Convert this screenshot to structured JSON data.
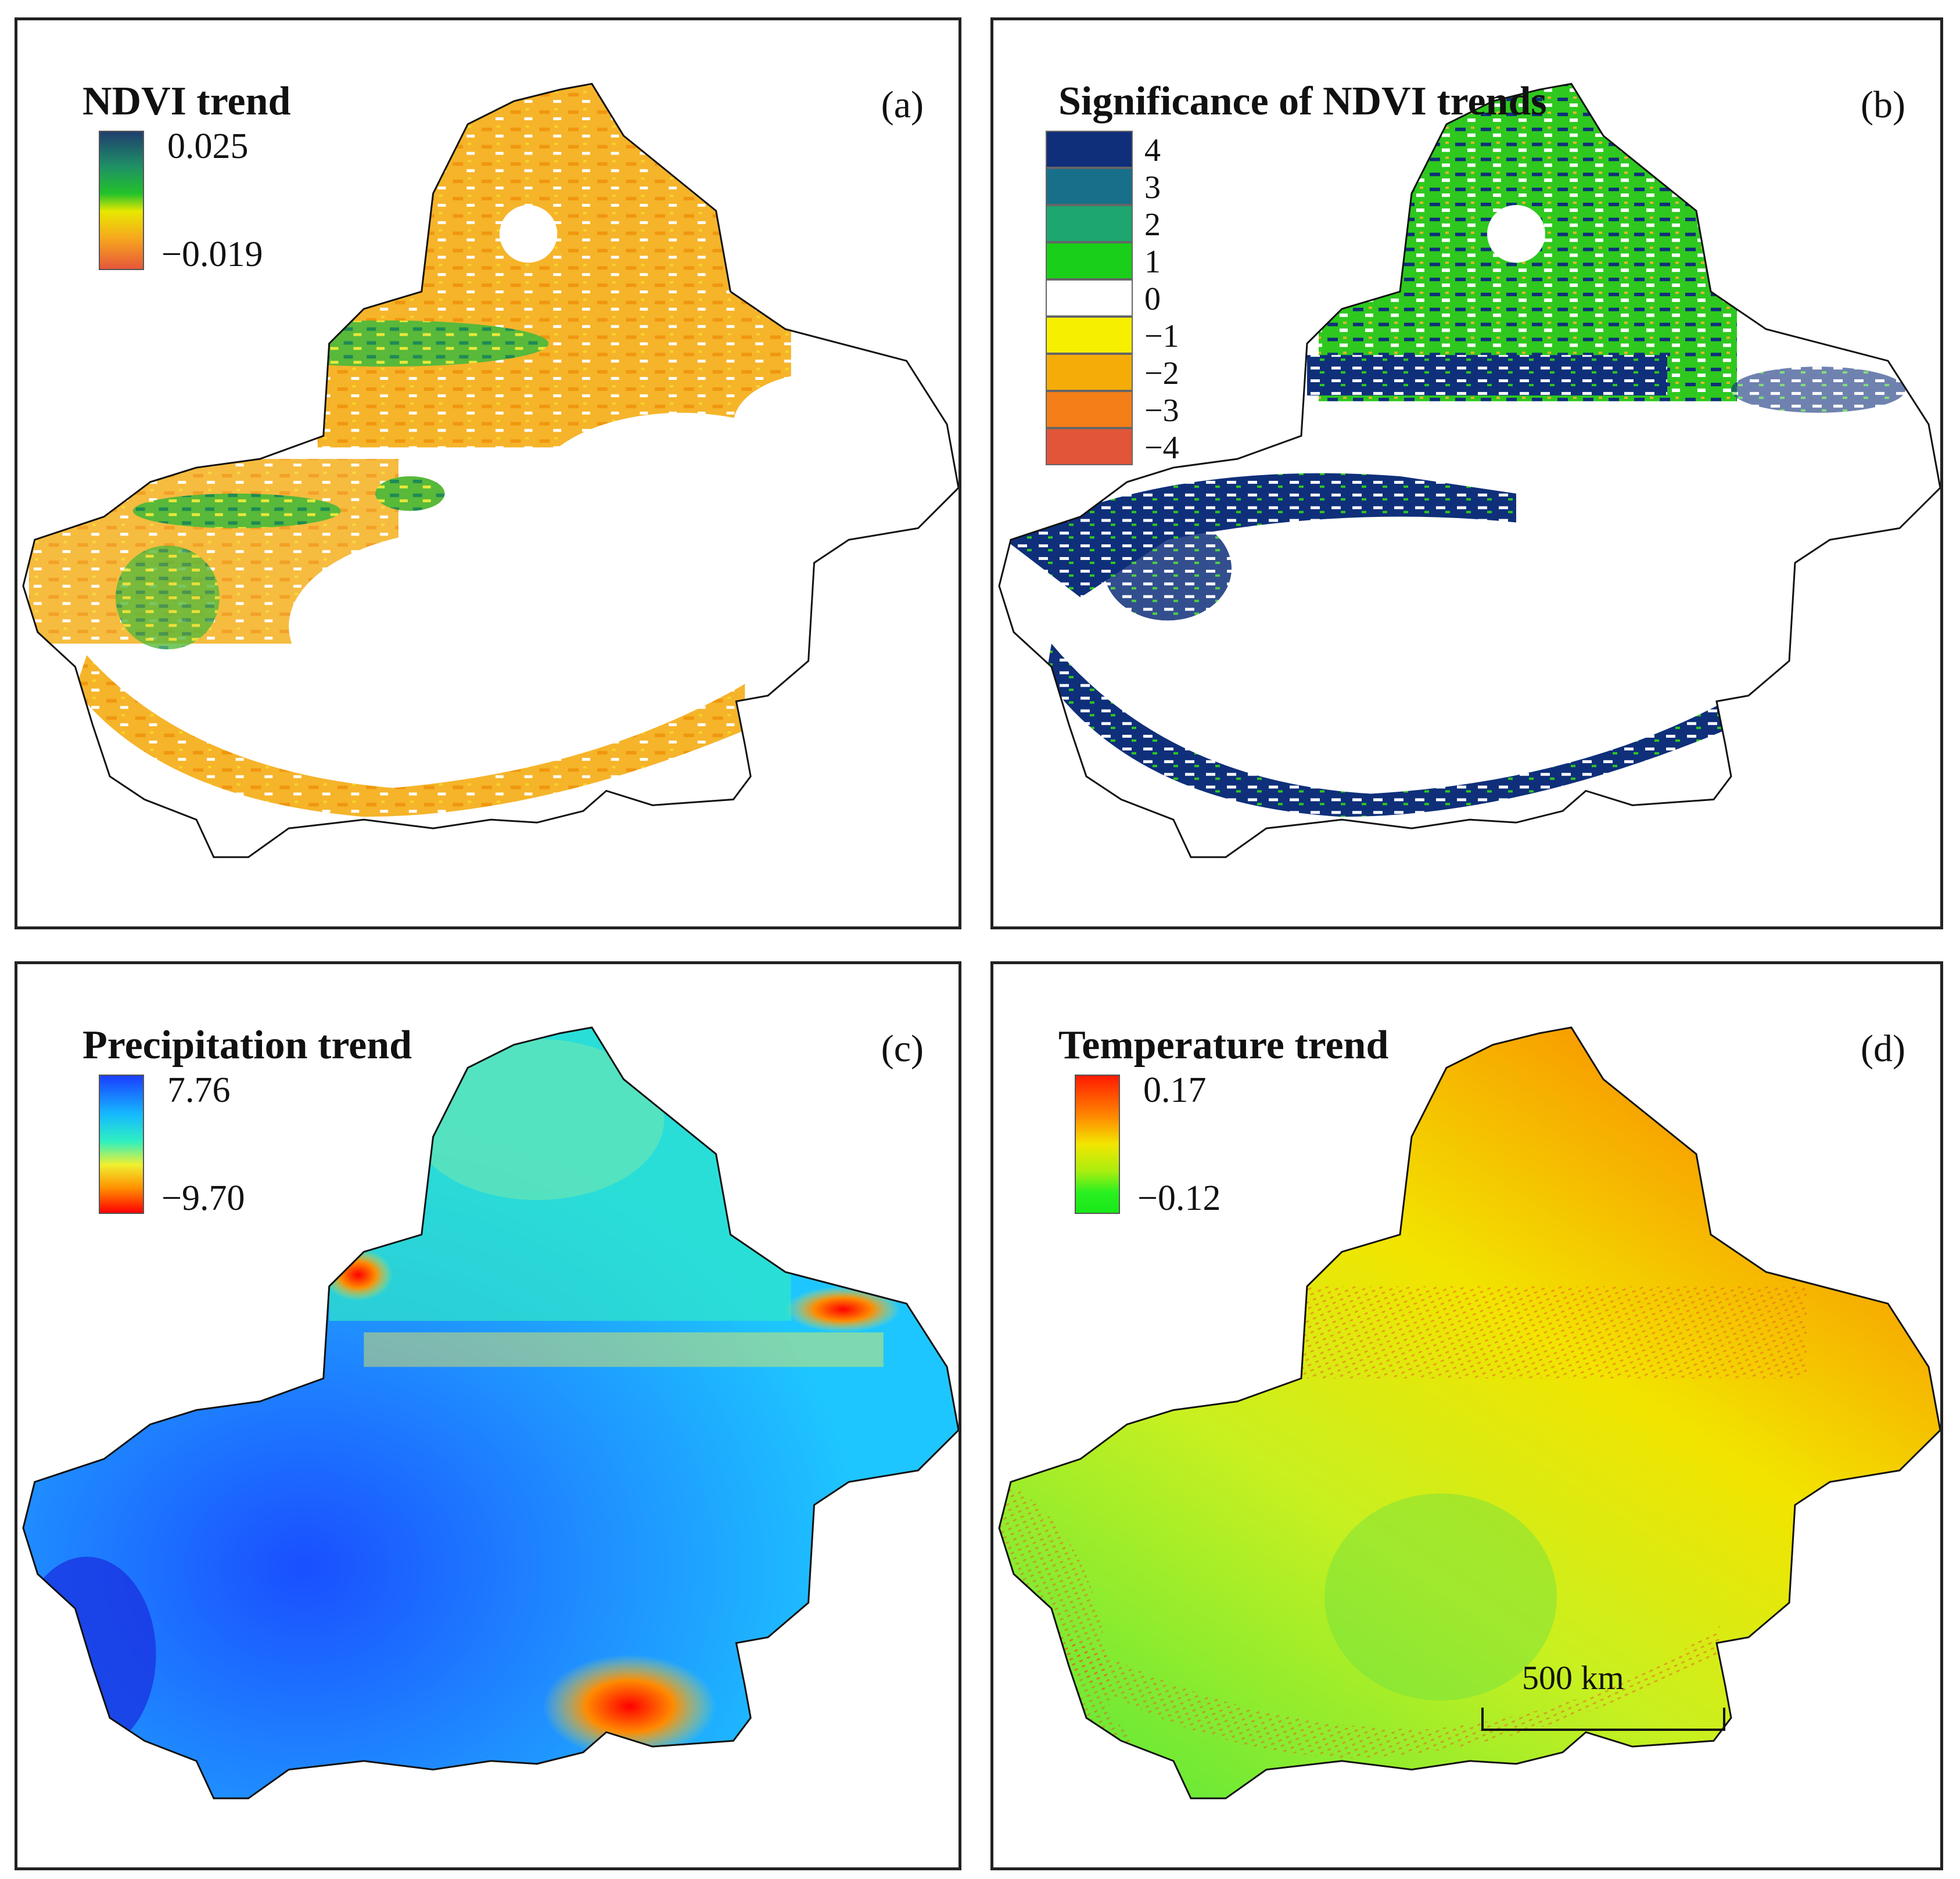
{
  "panels": [
    {
      "id": "a",
      "title": "NDVI trend",
      "label": "(a)",
      "legend": {
        "max": "0.025",
        "min": "−0.019",
        "colors": [
          "#1f3f6e",
          "#1f8f66",
          "#22c22a",
          "#e8e800",
          "#f6a61e",
          "#e7573a"
        ]
      },
      "style": "ndvi"
    },
    {
      "id": "b",
      "title": "Significance of NDVI trends",
      "label": "(b)",
      "legend_classes": [
        {
          "value": "4",
          "color": "#0f2f7a"
        },
        {
          "value": "3",
          "color": "#176f8a"
        },
        {
          "value": "2",
          "color": "#1da66f"
        },
        {
          "value": "1",
          "color": "#19cf19"
        },
        {
          "value": "0",
          "color": "#ffffff"
        },
        {
          "value": "−1",
          "color": "#f6ef00"
        },
        {
          "value": "−2",
          "color": "#f6ac08"
        },
        {
          "value": "−3",
          "color": "#f47e17"
        },
        {
          "value": "−4",
          "color": "#e25538"
        }
      ],
      "style": "significance"
    },
    {
      "id": "c",
      "title": "Precipitation trend",
      "label": "(c)",
      "legend": {
        "max": "7.76",
        "min": "−9.70",
        "colors": [
          "#1a3dff",
          "#15b9ff",
          "#2ff0c0",
          "#f0f030",
          "#ff9000",
          "#ff0000"
        ]
      },
      "style": "precip"
    },
    {
      "id": "d",
      "title": "Temperature trend",
      "label": "(d)",
      "legend": {
        "max": "0.17",
        "min": "−0.12",
        "colors": [
          "#ff1a00",
          "#ff8a00",
          "#f3e600",
          "#a8ee10",
          "#2af020",
          "#18e818"
        ]
      },
      "style": "temp",
      "scalebar": "500 km"
    }
  ]
}
